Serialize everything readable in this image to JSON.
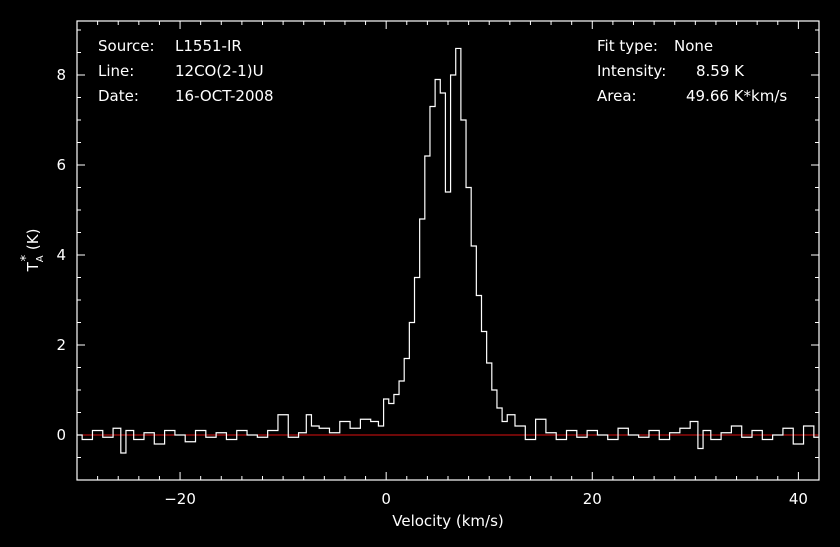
{
  "chart_data": {
    "type": "line",
    "title": "",
    "xlabel": "Velocity (km/s)",
    "ylabel": "T_A^* (K)",
    "xlim": [
      -30,
      42
    ],
    "ylim": [
      -1,
      9.2
    ],
    "x_ticks": [
      -20,
      0,
      20,
      40
    ],
    "y_ticks": [
      0,
      2,
      4,
      6,
      8
    ],
    "x_tick_labels": [
      "−20",
      "0",
      "20",
      "40"
    ],
    "y_tick_labels": [
      "0",
      "2",
      "4",
      "6",
      "8"
    ],
    "grid": false,
    "baseline": 0,
    "series": [
      {
        "style": "step",
        "points": [
          [
            -30,
            0.0
          ],
          [
            -29,
            -0.1
          ],
          [
            -28,
            0.1
          ],
          [
            -27,
            -0.05
          ],
          [
            -26,
            0.15
          ],
          [
            -25.5,
            -0.4
          ],
          [
            -25,
            0.1
          ],
          [
            -24,
            -0.1
          ],
          [
            -23,
            0.05
          ],
          [
            -22,
            -0.2
          ],
          [
            -21,
            0.1
          ],
          [
            -20,
            0.0
          ],
          [
            -19,
            -0.15
          ],
          [
            -18,
            0.1
          ],
          [
            -17,
            -0.05
          ],
          [
            -16,
            0.05
          ],
          [
            -15,
            -0.1
          ],
          [
            -14,
            0.1
          ],
          [
            -13,
            0.0
          ],
          [
            -12,
            -0.05
          ],
          [
            -11,
            0.1
          ],
          [
            -10,
            0.45
          ],
          [
            -9,
            -0.05
          ],
          [
            -8,
            0.05
          ],
          [
            -7.5,
            0.45
          ],
          [
            -7,
            0.2
          ],
          [
            -6,
            0.15
          ],
          [
            -5,
            0.05
          ],
          [
            -4,
            0.3
          ],
          [
            -3,
            0.15
          ],
          [
            -2,
            0.35
          ],
          [
            -1,
            0.3
          ],
          [
            -0.5,
            0.2
          ],
          [
            0,
            0.8
          ],
          [
            0.5,
            0.7
          ],
          [
            1,
            0.9
          ],
          [
            1.5,
            1.2
          ],
          [
            2,
            1.7
          ],
          [
            2.5,
            2.5
          ],
          [
            3,
            3.5
          ],
          [
            3.5,
            4.8
          ],
          [
            4,
            6.2
          ],
          [
            4.5,
            7.3
          ],
          [
            5,
            7.9
          ],
          [
            5.5,
            7.6
          ],
          [
            6,
            5.4
          ],
          [
            6.5,
            8.0
          ],
          [
            7,
            8.59
          ],
          [
            7.5,
            7.0
          ],
          [
            8,
            5.5
          ],
          [
            8.5,
            4.2
          ],
          [
            9,
            3.1
          ],
          [
            9.5,
            2.3
          ],
          [
            10,
            1.6
          ],
          [
            10.5,
            1.0
          ],
          [
            11,
            0.6
          ],
          [
            11.5,
            0.3
          ],
          [
            12,
            0.45
          ],
          [
            13,
            0.2
          ],
          [
            14,
            -0.1
          ],
          [
            15,
            0.35
          ],
          [
            16,
            0.05
          ],
          [
            17,
            -0.1
          ],
          [
            18,
            0.1
          ],
          [
            19,
            -0.05
          ],
          [
            20,
            0.1
          ],
          [
            21,
            0.0
          ],
          [
            22,
            -0.1
          ],
          [
            23,
            0.15
          ],
          [
            24,
            0.0
          ],
          [
            25,
            -0.05
          ],
          [
            26,
            0.1
          ],
          [
            27,
            -0.1
          ],
          [
            28,
            0.05
          ],
          [
            29,
            0.15
          ],
          [
            30,
            0.3
          ],
          [
            30.5,
            -0.3
          ],
          [
            31,
            0.1
          ],
          [
            32,
            -0.1
          ],
          [
            33,
            0.05
          ],
          [
            34,
            0.2
          ],
          [
            35,
            -0.05
          ],
          [
            36,
            0.1
          ],
          [
            37,
            -0.1
          ],
          [
            38,
            0.0
          ],
          [
            39,
            0.15
          ],
          [
            40,
            -0.2
          ],
          [
            41,
            0.2
          ],
          [
            42,
            -0.05
          ]
        ]
      }
    ],
    "colors": {
      "background": "#000000",
      "spectrum": "#ffffff",
      "baseline": "#dd1111"
    }
  },
  "info": {
    "left": [
      {
        "key": "Source:",
        "value": "L1551-IR"
      },
      {
        "key": "Line:",
        "value": "12CO(2-1)U"
      },
      {
        "key": "Date:",
        "value": "16-OCT-2008"
      }
    ],
    "right": [
      {
        "key": "Fit type:",
        "value": "None"
      },
      {
        "key": "Intensity:",
        "value": "8.59 K"
      },
      {
        "key": "Area:",
        "value": "49.66 K*km/s"
      }
    ]
  }
}
